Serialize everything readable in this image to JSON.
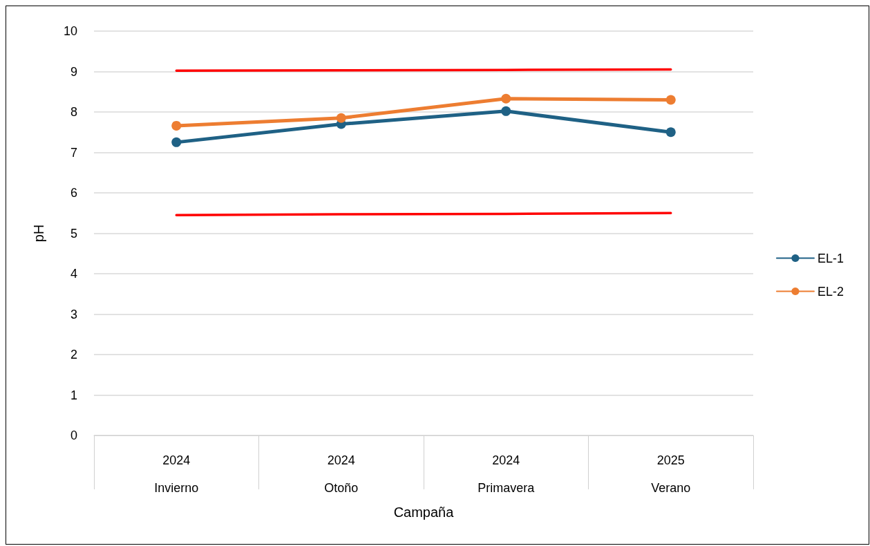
{
  "chart_data": {
    "type": "line",
    "xlabel": "Campaña",
    "ylabel": "pH",
    "categories": [
      "2024\nInvierno",
      "2024\nOtoño",
      "2024\nPrimavera",
      "2025\nVerano"
    ],
    "series": [
      {
        "name": "EL-1",
        "color": "#1f6185",
        "values": [
          7.25,
          7.7,
          8.02,
          7.5
        ]
      },
      {
        "name": "EL-2",
        "color": "#ed7d31",
        "values": [
          7.66,
          7.85,
          8.33,
          8.3
        ]
      },
      {
        "color": "#ff0000",
        "marker": "none",
        "values": [
          9.02,
          9.03,
          9.04,
          9.05
        ]
      },
      {
        "color": "#ff0000",
        "marker": "none",
        "values": [
          5.45,
          5.47,
          5.48,
          5.5
        ]
      }
    ],
    "ylim": [
      0,
      10
    ],
    "yticks": [
      0,
      1,
      2,
      3,
      4,
      5,
      6,
      7,
      8,
      9,
      10
    ],
    "grid": "y",
    "legend": "right",
    "marker": "circle"
  }
}
